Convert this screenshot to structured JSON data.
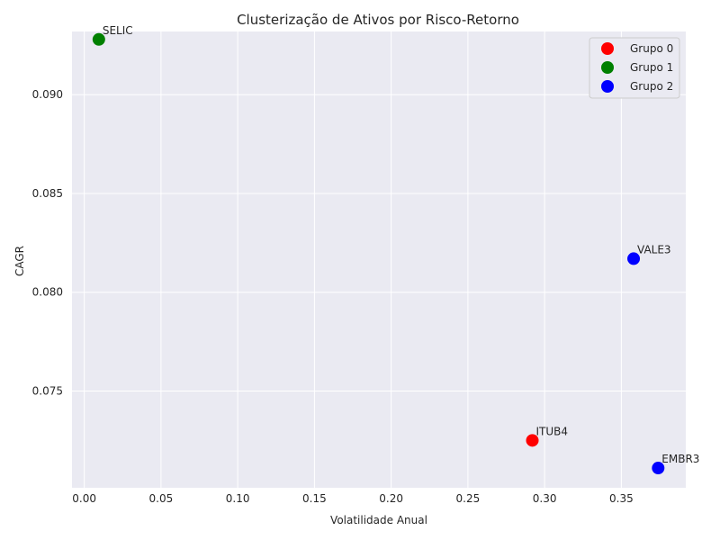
{
  "chart_data": {
    "type": "scatter",
    "title": "Clusterização de Ativos por Risco-Retorno",
    "xlabel": "Volatilidade Anual",
    "ylabel": "CAGR",
    "xlim": [
      -0.008,
      0.392
    ],
    "ylim": [
      0.0701,
      0.0932
    ],
    "xticks": [
      0.0,
      0.05,
      0.1,
      0.15,
      0.2,
      0.25,
      0.3,
      0.35
    ],
    "xtick_labels": [
      "0.00",
      "0.05",
      "0.10",
      "0.15",
      "0.20",
      "0.25",
      "0.30",
      "0.35"
    ],
    "yticks": [
      0.075,
      0.08,
      0.085,
      0.09
    ],
    "ytick_labels": [
      "0.075",
      "0.080",
      "0.085",
      "0.090"
    ],
    "grid": true,
    "legend_position": "top-right",
    "series": [
      {
        "name": "Grupo 0",
        "color": "#ff0000",
        "points": [
          {
            "label": "ITUB4",
            "x": 0.292,
            "y": 0.0725
          }
        ]
      },
      {
        "name": "Grupo 1",
        "color": "#008000",
        "points": [
          {
            "label": "SELIC",
            "x": 0.0095,
            "y": 0.0928
          }
        ]
      },
      {
        "name": "Grupo 2",
        "color": "#0000ff",
        "points": [
          {
            "label": "VALE3",
            "x": 0.358,
            "y": 0.0817
          },
          {
            "label": "EMBR3",
            "x": 0.374,
            "y": 0.0711
          }
        ]
      }
    ]
  }
}
